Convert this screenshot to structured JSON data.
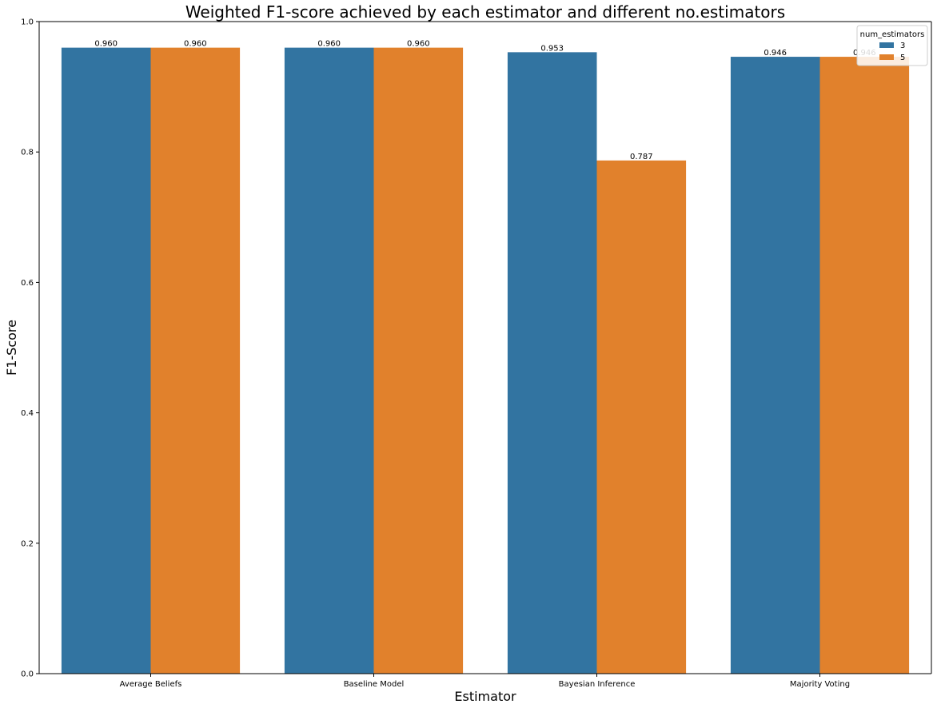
{
  "chart_data": {
    "type": "bar",
    "title": "Weighted F1-score  achieved by each estimator and different no.estimators",
    "xlabel": "Estimator",
    "ylabel": "F1-Score",
    "categories": [
      "Average Beliefs",
      "Baseline Model",
      "Bayesian Inference",
      "Majority Voting"
    ],
    "series": [
      {
        "name": "3",
        "color": "#3274a1",
        "values": [
          0.96,
          0.96,
          0.953,
          0.946
        ],
        "labels": [
          "0.960",
          "0.960",
          "0.953",
          "0.946"
        ]
      },
      {
        "name": "5",
        "color": "#e1812c",
        "values": [
          0.96,
          0.96,
          0.787,
          0.946
        ],
        "labels": [
          "0.960",
          "0.960",
          "0.787",
          "0.946"
        ]
      }
    ],
    "ylim": [
      0,
      1.0
    ],
    "yticks": [
      "0.0",
      "0.2",
      "0.4",
      "0.6",
      "0.8",
      "1.0"
    ],
    "grid": false,
    "legend": {
      "title": "num_estimators",
      "placement": "top-right"
    }
  }
}
